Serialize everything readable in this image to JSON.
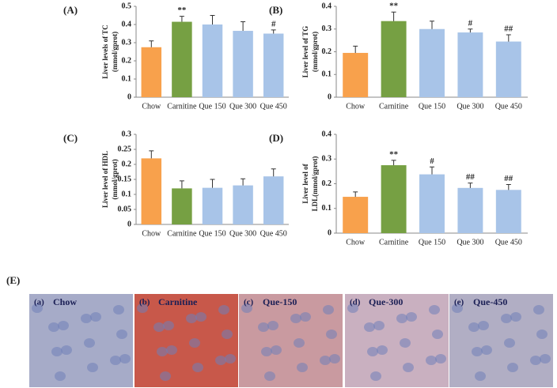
{
  "chart_data": [
    {
      "type": "bar",
      "panel_label": "(A)",
      "y_label": [
        "Liver levels of TC",
        "(mmol/gprot)"
      ],
      "categories": [
        "Chow",
        "Carnitine",
        "Que 150",
        "Que 300",
        "Que 450"
      ],
      "values": [
        0.275,
        0.415,
        0.4,
        0.365,
        0.35
      ],
      "errors": [
        0.035,
        0.03,
        0.05,
        0.05,
        0.02
      ],
      "annotations": [
        null,
        "**",
        null,
        null,
        "#"
      ],
      "colors": [
        "#f8a14c",
        "#76a043",
        "#a8c4e8",
        "#a8c4e8",
        "#a8c4e8"
      ],
      "ylim": [
        0,
        0.5
      ],
      "yticks": [
        0,
        0.1,
        0.2,
        0.3,
        0.4,
        0.5
      ]
    },
    {
      "type": "bar",
      "panel_label": "(B)",
      "y_label": [
        "Liver level of TG",
        "(mmol/gprot)"
      ],
      "categories": [
        "Chow",
        "Carnitine",
        "Que 150",
        "Que 300",
        "Que 450"
      ],
      "values": [
        0.195,
        0.335,
        0.3,
        0.285,
        0.245
      ],
      "errors": [
        0.03,
        0.04,
        0.035,
        0.015,
        0.03
      ],
      "annotations": [
        null,
        "**",
        null,
        "#",
        "##"
      ],
      "colors": [
        "#f8a14c",
        "#76a043",
        "#a8c4e8",
        "#a8c4e8",
        "#a8c4e8"
      ],
      "ylim": [
        0,
        0.4
      ],
      "yticks": [
        0,
        0.1,
        0.2,
        0.3,
        0.4
      ]
    },
    {
      "type": "bar",
      "panel_label": "(C)",
      "y_label": [
        "Liver level of HDL",
        "(mmol/gprot)"
      ],
      "categories": [
        "Chow",
        "Carnitine",
        "Que 150",
        "Que 300",
        "Que 450"
      ],
      "values": [
        0.22,
        0.12,
        0.122,
        0.13,
        0.16
      ],
      "errors": [
        0.025,
        0.025,
        0.028,
        0.022,
        0.025
      ],
      "annotations": [
        null,
        null,
        null,
        null,
        null
      ],
      "colors": [
        "#f8a14c",
        "#76a043",
        "#a8c4e8",
        "#a8c4e8",
        "#a8c4e8"
      ],
      "ylim": [
        0,
        0.3
      ],
      "yticks": [
        0,
        0.05,
        0.1,
        0.15,
        0.2,
        0.25,
        0.3
      ]
    },
    {
      "type": "bar",
      "panel_label": "(D)",
      "y_label": [
        "Liver level of",
        "LDL(mmol/gprot)"
      ],
      "categories": [
        "Chow",
        "Carnitine",
        "Que 150",
        "Que 300",
        "Que 450"
      ],
      "values": [
        0.147,
        0.275,
        0.238,
        0.183,
        0.175
      ],
      "errors": [
        0.02,
        0.02,
        0.03,
        0.02,
        0.022
      ],
      "annotations": [
        null,
        "**",
        "#",
        "##",
        "##"
      ],
      "colors": [
        "#f8a14c",
        "#76a043",
        "#a8c4e8",
        "#a8c4e8",
        "#a8c4e8"
      ],
      "ylim": [
        0,
        0.4
      ],
      "yticks": [
        0,
        0.1,
        0.2,
        0.3,
        0.4
      ]
    }
  ],
  "images": {
    "label": "(E)",
    "panels": [
      {
        "tag": "(a)",
        "label": "Chow",
        "color": "#a6abc8"
      },
      {
        "tag": "(b)",
        "label": "Carnitine",
        "color": "#c8584a"
      },
      {
        "tag": "(c)",
        "label": "Que-150",
        "color": "#c99aa0"
      },
      {
        "tag": "(d)",
        "label": "Que-300",
        "color": "#c9b0c0"
      },
      {
        "tag": "(e)",
        "label": "Que-450",
        "color": "#b1aec4"
      }
    ]
  }
}
